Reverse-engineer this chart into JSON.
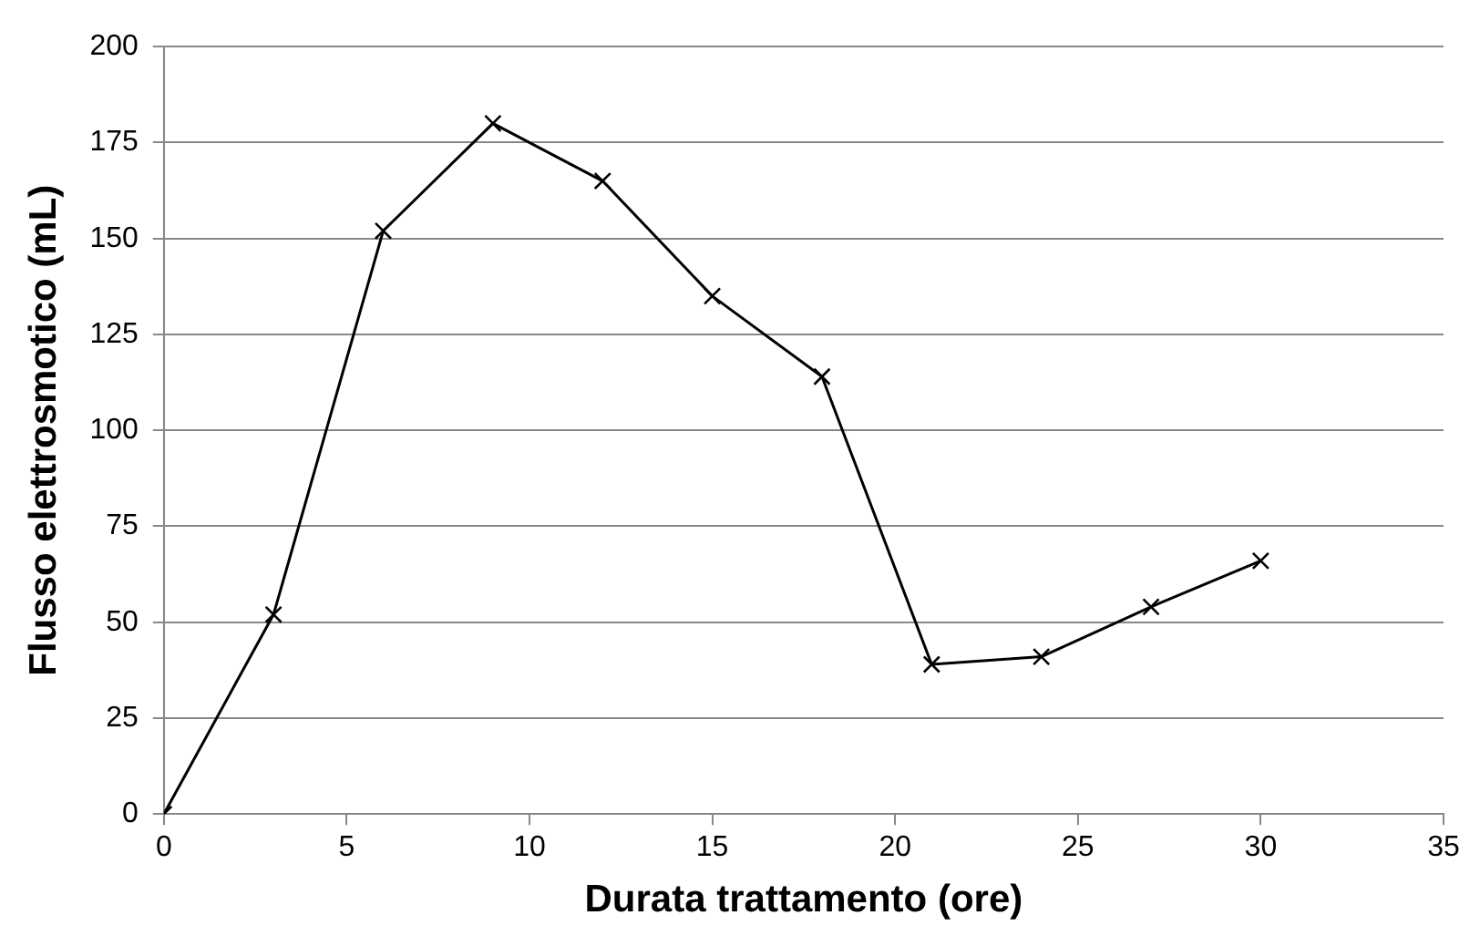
{
  "chart_data": {
    "type": "line",
    "xlabel": "Durata trattamento (ore)",
    "ylabel": "Flusso elettrosmotico (mL)",
    "x": [
      0,
      3,
      6,
      9,
      12,
      15,
      18,
      21,
      24,
      27,
      30
    ],
    "series": [
      {
        "color": "#000000",
        "values": [
          0,
          52,
          152,
          180,
          165,
          135,
          114,
          39,
          41,
          54,
          66
        ]
      }
    ],
    "xlim": [
      0,
      35
    ],
    "xticks": [
      0,
      5,
      10,
      15,
      20,
      25,
      30,
      35
    ],
    "ylim": [
      0,
      200
    ],
    "yticks": [
      0,
      25,
      50,
      75,
      100,
      125,
      150,
      175,
      200
    ],
    "grid": "y",
    "legend": false,
    "marker": "cross",
    "line_style": "solid"
  }
}
